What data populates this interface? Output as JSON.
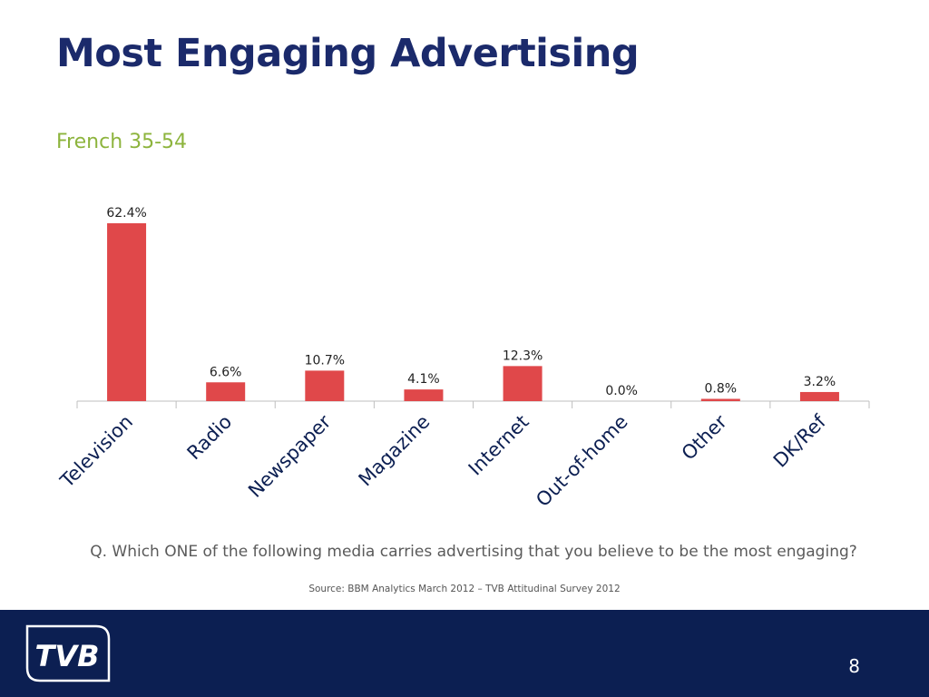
{
  "slide": {
    "title": "Most Engaging Advertising",
    "subtitle": "French 35-54",
    "question": "Q. Which ONE of the following media carries advertising that you believe to be the most engaging?",
    "source": "Source: BBM Analytics March 2012 – TVB Attitudinal Survey 2012",
    "page_number": "8"
  },
  "footer": {
    "logo_text": "TVB",
    "background": "#0c1f52"
  },
  "colors": {
    "title": "#1b2a6b",
    "subtitle": "#8db43d",
    "bar": "#e0484a"
  },
  "chart_data": {
    "type": "bar",
    "categories": [
      "Television",
      "Radio",
      "Newspaper",
      "Magazine",
      "Internet",
      "Out-of-home",
      "Other",
      "DK/Ref"
    ],
    "values": [
      62.4,
      6.6,
      10.7,
      4.1,
      12.3,
      0.0,
      0.8,
      3.2
    ],
    "data_labels": [
      "62.4%",
      "6.6%",
      "10.7%",
      "4.1%",
      "12.3%",
      "0.0%",
      "0.8%",
      "3.2%"
    ],
    "title": "",
    "xlabel": "",
    "ylabel": "",
    "ylim": [
      0,
      62.4
    ],
    "grid": false,
    "legend": "none"
  }
}
